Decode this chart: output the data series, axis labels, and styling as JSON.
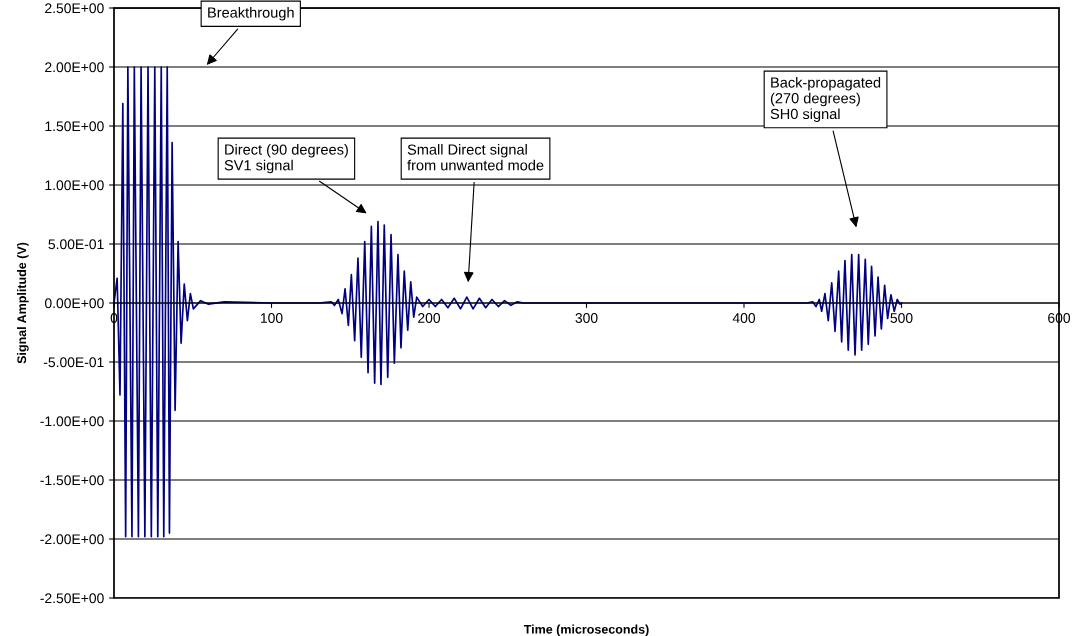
{
  "chart_data": {
    "type": "line",
    "xlabel": "Time (microseconds)",
    "ylabel": "Signal Amplitude (V)",
    "xlim": [
      0,
      600
    ],
    "xticks": [
      0,
      100,
      200,
      300,
      400,
      500,
      600
    ],
    "ylim": [
      -2.5,
      2.5
    ],
    "yticks": [
      {
        "value": -2.5,
        "label": "-2.50E+00"
      },
      {
        "value": -2.0,
        "label": "-2.00E+00"
      },
      {
        "value": -1.5,
        "label": "-1.50E+00"
      },
      {
        "value": -1.0,
        "label": "-1.00E+00"
      },
      {
        "value": -0.5,
        "label": "-5.00E-01"
      },
      {
        "value": 0,
        "label": "0.00E+00"
      },
      {
        "value": 0.5,
        "label": "5.00E-01"
      },
      {
        "value": 1.0,
        "label": "1.00E+00"
      },
      {
        "value": 1.5,
        "label": "1.50E+00"
      },
      {
        "value": 2.0,
        "label": "2.00E+00"
      },
      {
        "value": 2.5,
        "label": "2.50E+00"
      }
    ],
    "grid": "y",
    "legend": false,
    "marker": "none",
    "line_style": "solid",
    "annotations": [
      "Breakthrough",
      "Direct (90 degrees)\nSV1 signal",
      "Small Direct signal\nfrom unwanted mode",
      "Back-propagated\n(270 degrees)\nSH0 signal"
    ],
    "series": [
      {
        "color": "#000080",
        "x": [
          0,
          2,
          3.8,
          5.6,
          7.4,
          8.8,
          11.4,
          12.9,
          15.5,
          17.2,
          19.6,
          21.6,
          23.7,
          25.9,
          27.8,
          30,
          31.6,
          33.8,
          35.2,
          36.9,
          38.8,
          40.7,
          42.6,
          44.6,
          46.6,
          48.5,
          50.4,
          55,
          60,
          70,
          100,
          130,
          138,
          140,
          142.4,
          144.8,
          146.7,
          148.8,
          150.7,
          152.8,
          154.9,
          157.0,
          159.2,
          161.3,
          163.4,
          165.5,
          167.6,
          169.5,
          171.6,
          173.8,
          175.9,
          178.0,
          180.3,
          182.2,
          184.3,
          186.5,
          188.4,
          190.3,
          192.2,
          196,
          200,
          204,
          208,
          212,
          216,
          220,
          224,
          228,
          232,
          236,
          240,
          244,
          248,
          252,
          256,
          260,
          300,
          350,
          400,
          440,
          443.6,
          445.7,
          447.8,
          449.3,
          451.4,
          453.5,
          455.7,
          457.8,
          460.1,
          462.0,
          464.1,
          466.2,
          468.4,
          470.5,
          472.8,
          474.7,
          477.0,
          478.9,
          481.0,
          483.2,
          485.1,
          487.2,
          489.3,
          491.2,
          493.3,
          495.4,
          497.3,
          499.0,
          500
        ],
        "values": [
          0,
          0.21,
          -0.78,
          1.69,
          -1.98,
          2.0,
          -1.98,
          2.0,
          -1.98,
          2.0,
          -1.98,
          2.0,
          -1.98,
          2.0,
          -1.98,
          2.0,
          -1.98,
          2.0,
          -1.95,
          1.36,
          -0.91,
          0.52,
          -0.34,
          0.16,
          -0.15,
          0.08,
          -0.05,
          0.02,
          -0.01,
          0.01,
          0,
          0,
          0.01,
          -0.02,
          0.03,
          -0.09,
          0.12,
          -0.19,
          0.24,
          -0.32,
          0.38,
          -0.46,
          0.52,
          -0.59,
          0.65,
          -0.68,
          0.69,
          -0.69,
          0.66,
          -0.63,
          0.58,
          -0.51,
          0.41,
          -0.38,
          0.27,
          -0.23,
          0.18,
          -0.12,
          0.05,
          -0.03,
          0.03,
          -0.03,
          0.03,
          -0.04,
          0.04,
          -0.05,
          0.05,
          -0.05,
          0.04,
          -0.04,
          0.03,
          -0.03,
          0.02,
          -0.02,
          0.01,
          0,
          0,
          0,
          0,
          0,
          0.01,
          -0.03,
          0.03,
          -0.07,
          0.08,
          -0.15,
          0.17,
          -0.24,
          0.27,
          -0.33,
          0.36,
          -0.4,
          0.41,
          -0.44,
          0.41,
          -0.4,
          0.37,
          -0.35,
          0.31,
          -0.28,
          0.22,
          -0.22,
          0.15,
          -0.13,
          0.07,
          -0.07,
          0.03,
          -0.01,
          0
        ]
      }
    ]
  }
}
